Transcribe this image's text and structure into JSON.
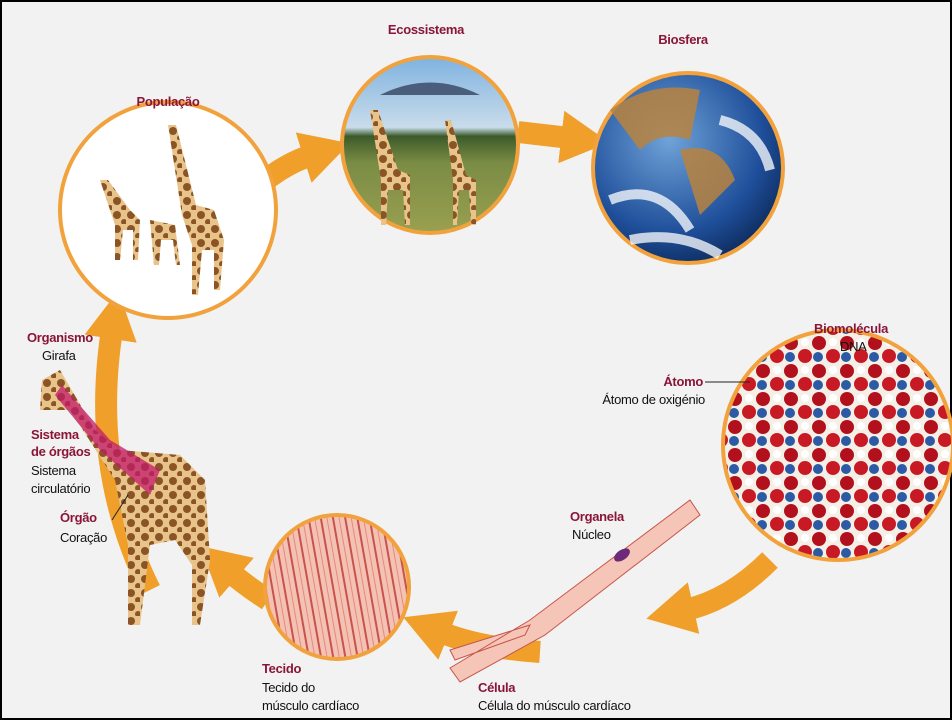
{
  "nodes": [
    {
      "title": "Ecossistema"
    },
    {
      "title": "Biosfera"
    },
    {
      "title": "População"
    },
    {
      "title": "Organismo",
      "label": [
        "Girafa"
      ]
    },
    {
      "title": [
        "Sistema",
        "de órgãos"
      ],
      "label": [
        "Sistema",
        "circulatório"
      ]
    },
    {
      "title": "Órgão",
      "label": [
        "Coração"
      ]
    },
    {
      "title": "Biomolécula",
      "label": [
        "DNA"
      ]
    },
    {
      "title": "Átomo",
      "label": [
        "Átomo de oxigénio"
      ]
    },
    {
      "title": "Organela",
      "label": [
        "Núcleo"
      ]
    },
    {
      "title": "Célula",
      "label": [
        "Célula do músculo cardíaco"
      ]
    },
    {
      "title": "Tecido",
      "label": [
        "Tecido do",
        "músculo cardíaco"
      ]
    }
  ]
}
